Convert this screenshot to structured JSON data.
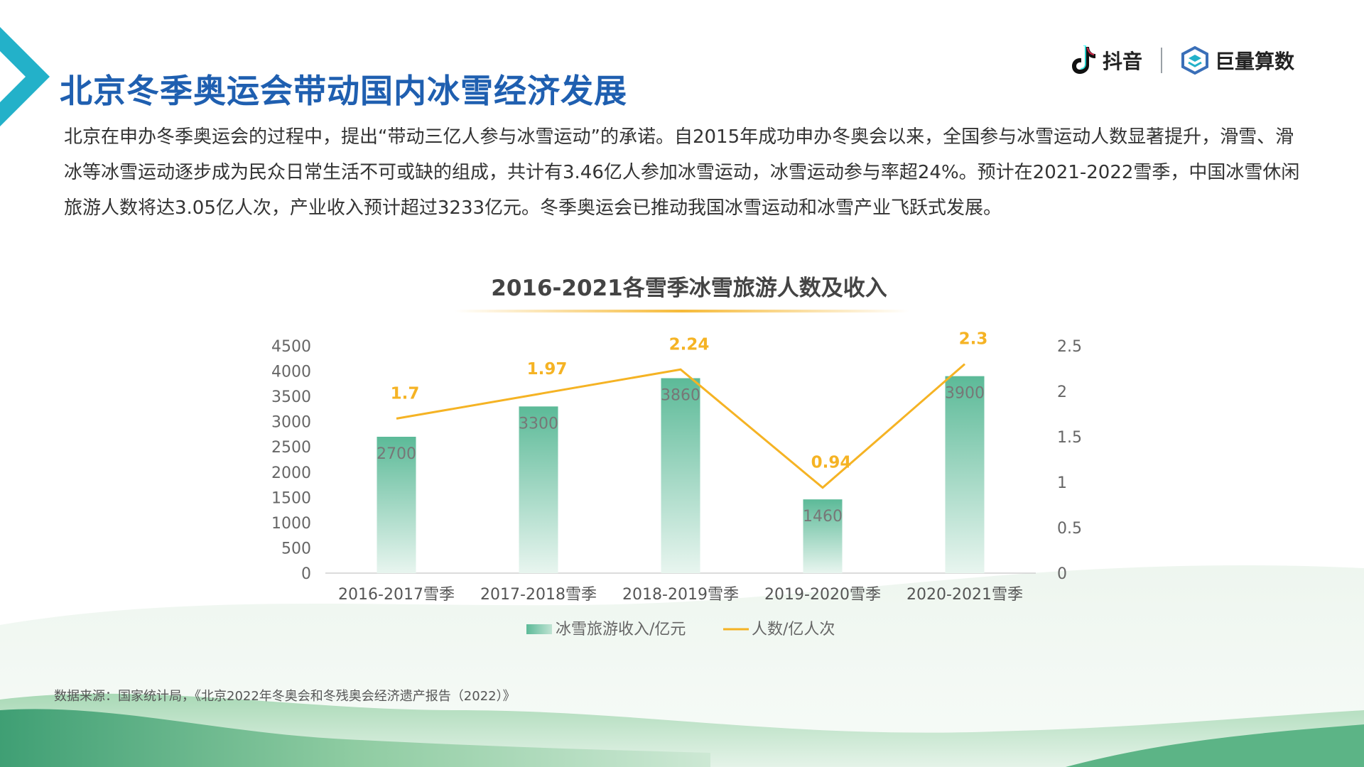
{
  "page": {
    "title": "北京冬季奥运会带动国内冰雪经济发展",
    "paragraph": "北京在申办冬季奥运会的过程中，提出“带动三亿人参与冰雪运动”的承诺。自2015年成功申办冬奥会以来，全国参与冰雪运动人数显著提升，滑雪、滑冰等冰雪运动逐步成为民众日常生活不可或缺的组成，共计有3.46亿人参加冰雪运动，冰雪运动参与率超24%。预计在2021-2022雪季，中国冰雪休闲旅游人数将达3.05亿人次，产业收入预计超过3233亿元。冬季奥运会已推动我国冰雪运动和冰雪产业飞跃式发展。",
    "source": "数据来源：国家统计局，《北京2022年冬奥会和冬残奥会经济遗产报告（2022）》"
  },
  "logos": {
    "douyin": "抖音",
    "juliang": "巨量算数"
  },
  "colors": {
    "title": "#1f5fb0",
    "bar_top": "#5cba98",
    "bar_bottom": "#e8f5ef",
    "line": "#f5b324",
    "accent_cyan": "#23b1c9"
  },
  "chart_data": {
    "type": "bar",
    "title": "2016-2021各雪季冰雪旅游人数及收入",
    "categories": [
      "2016-2017雪季",
      "2017-2018雪季",
      "2018-2019雪季",
      "2019-2020雪季",
      "2020-2021雪季"
    ],
    "series": [
      {
        "name": "冰雪旅游收入/亿元",
        "type": "bar",
        "axis": "left",
        "values": [
          2700,
          3300,
          3860,
          1460,
          3900
        ]
      },
      {
        "name": "人数/亿人次",
        "type": "line",
        "axis": "right",
        "values": [
          1.7,
          1.97,
          2.24,
          0.94,
          2.3
        ]
      }
    ],
    "y_left": {
      "min": 0,
      "max": 4500,
      "step": 500,
      "ticks": [
        "0",
        "500",
        "1000",
        "1500",
        "2000",
        "2500",
        "3000",
        "3500",
        "4000",
        "4500"
      ]
    },
    "y_right": {
      "min": 0,
      "max": 2.5,
      "step": 0.5,
      "ticks": [
        "0",
        "0.5",
        "1",
        "1.5",
        "2",
        "2.5"
      ]
    },
    "grid": false,
    "legend": "bottom"
  }
}
